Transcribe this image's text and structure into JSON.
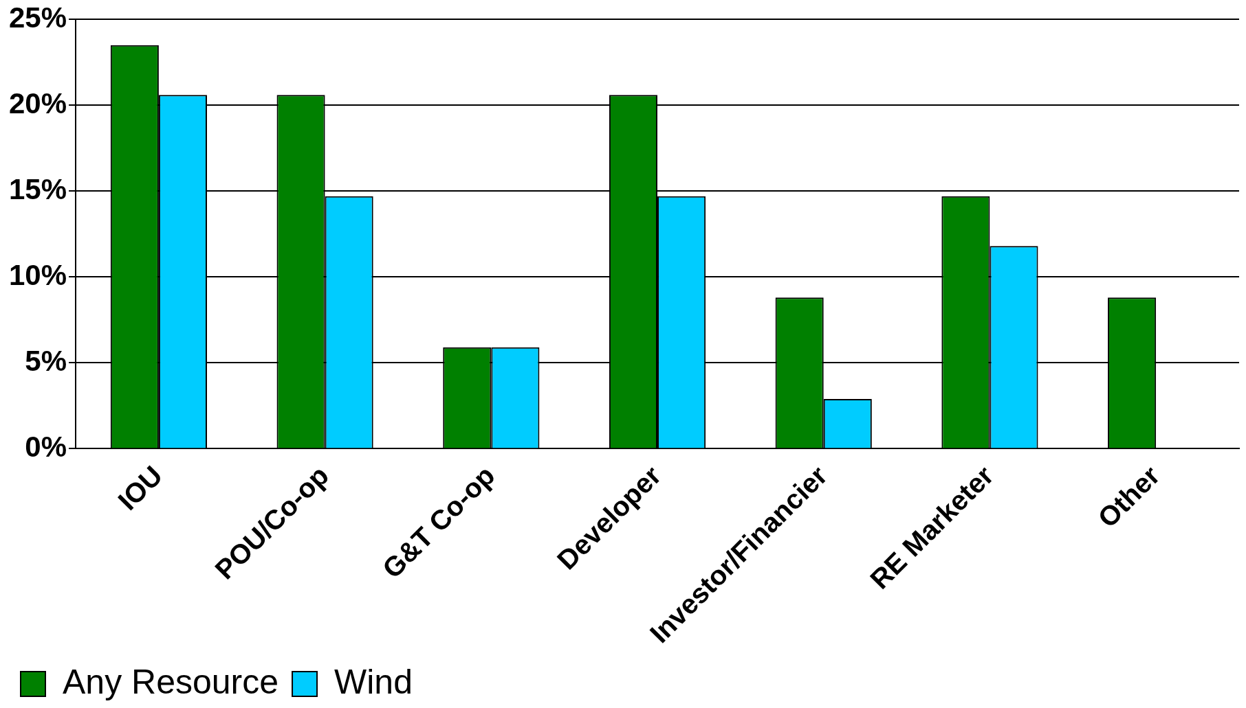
{
  "chart_data": {
    "type": "bar",
    "categories": [
      "IOU",
      "POU/Co-op",
      "G&T Co-op",
      "Developer",
      "Investor/Financier",
      "RE Marketer",
      "Other"
    ],
    "series": [
      {
        "name": "Any Resource",
        "color": "#008000",
        "values": [
          23.5,
          20.6,
          5.9,
          20.6,
          8.8,
          14.7,
          8.8
        ]
      },
      {
        "name": "Wind",
        "color": "#00ccff",
        "values": [
          20.6,
          14.7,
          5.9,
          14.7,
          2.9,
          11.8,
          0
        ]
      }
    ],
    "ylim": [
      0,
      25
    ],
    "yticks": [
      {
        "value": 0,
        "label": "0%"
      },
      {
        "value": 5,
        "label": "5%"
      },
      {
        "value": 10,
        "label": "10%"
      },
      {
        "value": 15,
        "label": "15%"
      },
      {
        "value": 20,
        "label": "20%"
      },
      {
        "value": 25,
        "label": "25%"
      }
    ],
    "grid": "y",
    "legend": "bottom left"
  }
}
